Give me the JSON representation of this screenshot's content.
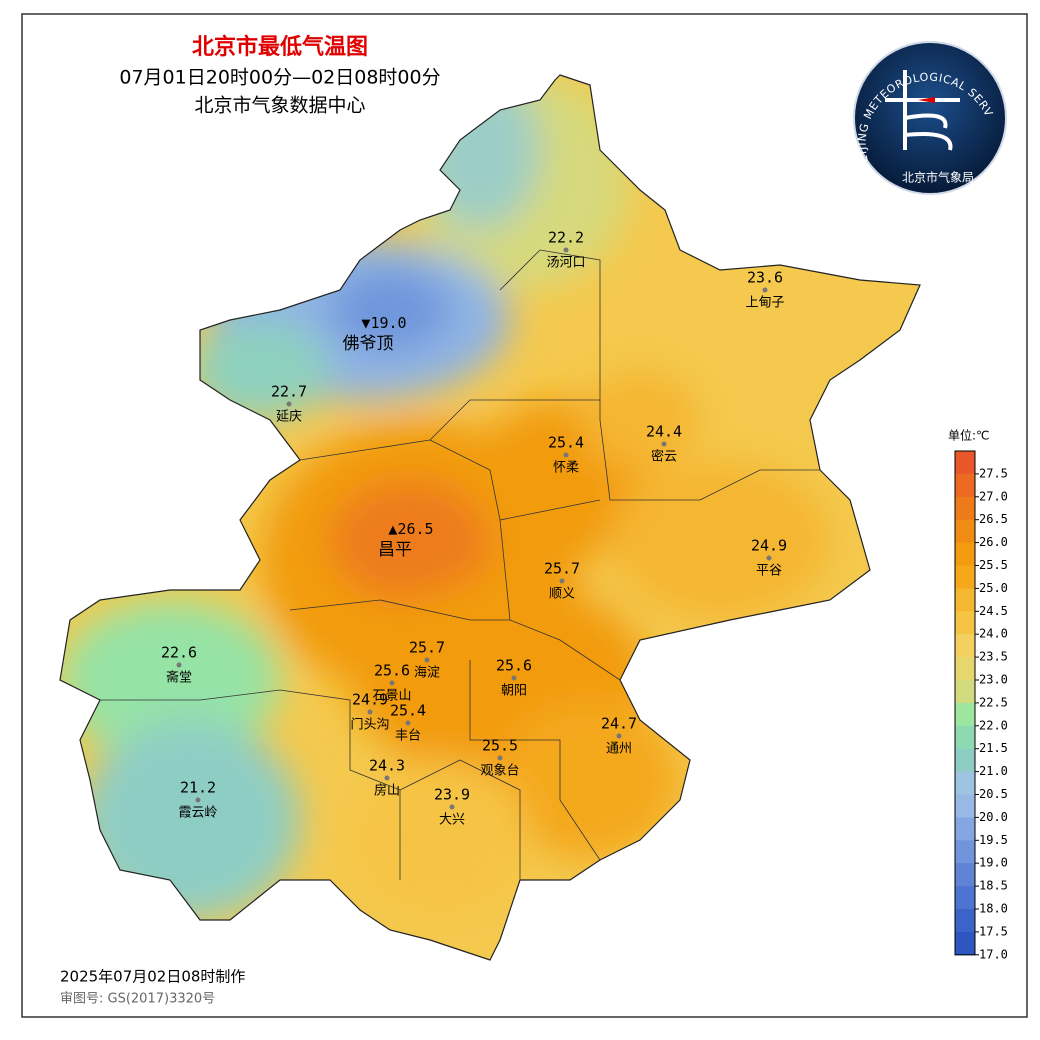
{
  "header": {
    "title": "北京市最低气温图",
    "time_range": "07月01日20时00分—02日08时00分",
    "source": "北京市气象数据中心"
  },
  "logo": {
    "english": "BEIJING METEOROLOGICAL SERVICE",
    "chinese": "北京市气象局"
  },
  "stations": [
    {
      "name": "汤河口",
      "value": "22.2"
    },
    {
      "name": "上甸子",
      "value": "23.6"
    },
    {
      "name": "佛爷顶",
      "value": "19.0",
      "marker": "▼"
    },
    {
      "name": "延庆",
      "value": "22.7"
    },
    {
      "name": "怀柔",
      "value": "25.4"
    },
    {
      "name": "密云",
      "value": "24.4"
    },
    {
      "name": "昌平",
      "value": "26.5",
      "marker": "▲"
    },
    {
      "name": "平谷",
      "value": "24.9"
    },
    {
      "name": "顺义",
      "value": "25.7"
    },
    {
      "name": "海淀",
      "value": "25.7"
    },
    {
      "name": "斋堂",
      "value": "22.6"
    },
    {
      "name": "石景山",
      "value": "25.6"
    },
    {
      "name": "朝阳",
      "value": "25.6"
    },
    {
      "name": "门头沟",
      "value": "24.9"
    },
    {
      "name": "丰台",
      "value": "25.4"
    },
    {
      "name": "通州",
      "value": "24.7"
    },
    {
      "name": "观象台",
      "value": "25.5"
    },
    {
      "name": "房山",
      "value": "24.3"
    },
    {
      "name": "霞云岭",
      "value": "21.2"
    },
    {
      "name": "大兴",
      "value": "23.9"
    }
  ],
  "legend": {
    "unit": "单位:℃",
    "ticks": [
      "27.5",
      "27.0",
      "26.5",
      "26.0",
      "25.5",
      "25.0",
      "24.5",
      "24.0",
      "23.5",
      "23.0",
      "22.5",
      "22.0",
      "21.5",
      "21.0",
      "20.5",
      "20.0",
      "19.5",
      "19.0",
      "18.5",
      "18.0",
      "17.5",
      "17.0"
    ],
    "colors": [
      "#e8562a",
      "#ec6a22",
      "#ee7b1a",
      "#f08c14",
      "#f29b10",
      "#f4a81a",
      "#f5b630",
      "#f6c445",
      "#f4d060",
      "#e6d66e",
      "#d2db7e",
      "#9ee6a0",
      "#8dd9b0",
      "#8ecdc4",
      "#9dc4e0",
      "#98b8e6",
      "#86a6e2",
      "#7294dc",
      "#5f84d6",
      "#4c74d0",
      "#3b64c8",
      "#2d56c0"
    ]
  },
  "footer": {
    "produced": "2025年07月02日08时制作",
    "approval": "审图号: GS(2017)3320号"
  }
}
